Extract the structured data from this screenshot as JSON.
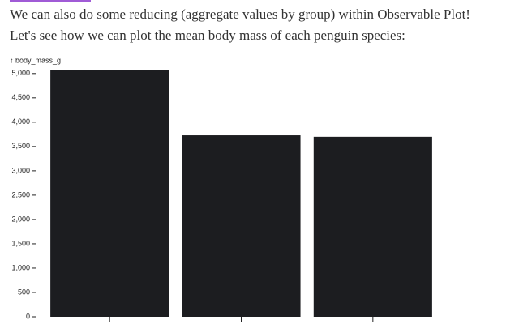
{
  "paragraph": [
    "We can also do some reducing (aggregate values by group) within Observable Plot!",
    "Let's see how we can plot the mean body mass of each penguin species:"
  ],
  "chart_data": {
    "type": "bar",
    "y_label": "↑ body_mass_g",
    "categories": [
      null,
      null,
      null
    ],
    "values": [
      5080,
      3730,
      3700
    ],
    "color": "#1c1d20",
    "ylim": [
      0,
      5080
    ],
    "yticks": [
      0,
      {
        "value": 500,
        "label": "500"
      },
      {
        "value": 1000,
        "label": "1,000"
      },
      {
        "value": 1500,
        "label": "1,500"
      },
      {
        "value": 2000,
        "label": "2,000"
      },
      {
        "value": 2500,
        "label": "2,500"
      },
      {
        "value": 3000,
        "label": "3,000"
      },
      {
        "value": 3500,
        "label": "3,500"
      },
      {
        "value": 4000,
        "label": "4,000"
      },
      {
        "value": 4500,
        "label": "4,500"
      },
      {
        "value": 5000,
        "label": "5,000"
      }
    ]
  }
}
